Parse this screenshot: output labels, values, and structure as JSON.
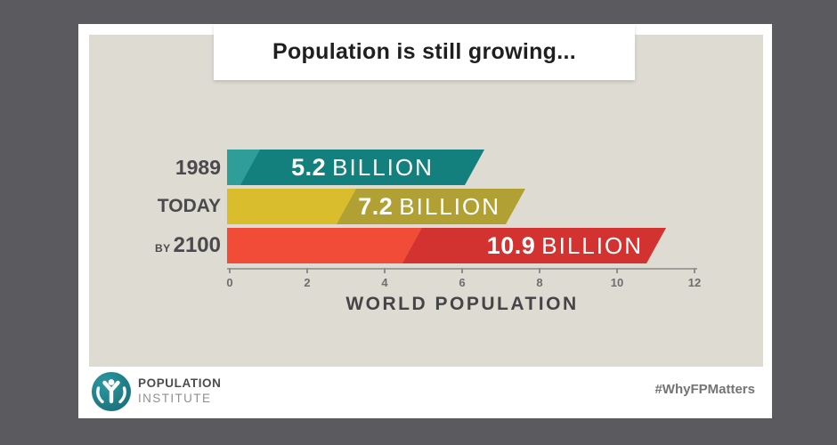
{
  "title": "Population is still growing...",
  "chart_data": {
    "type": "bar",
    "orientation": "horizontal",
    "title": "Population is still growing...",
    "categories": [
      "1989",
      "TODAY",
      "BY 2100"
    ],
    "values": [
      5.2,
      7.2,
      10.9
    ],
    "value_labels": [
      {
        "number": "5.2",
        "unit": "BILLION"
      },
      {
        "number": "7.2",
        "unit": "BILLION"
      },
      {
        "number": "10.9",
        "unit": "BILLION"
      }
    ],
    "xlabel": "WORLD POPULATION",
    "xlim": [
      0,
      12
    ],
    "xticks": [
      "0",
      "2",
      "4",
      "6",
      "8",
      "10",
      "12"
    ],
    "grid": false,
    "legend": false
  },
  "rows": [
    {
      "prefix": "",
      "label": "1989",
      "number": "5.2",
      "unit": "BILLION"
    },
    {
      "prefix": "",
      "label": "TODAY",
      "number": "7.2",
      "unit": "BILLION"
    },
    {
      "prefix": "BY",
      "label": "2100",
      "number": "10.9",
      "unit": "BILLION"
    }
  ],
  "axis": {
    "xlabel": "WORLD POPULATION"
  },
  "footer": {
    "logo_line1": "POPULATION",
    "logo_line2": "INSTITUTE",
    "hashtag": "#WhyFPMatters"
  },
  "colors": {
    "page_bg": "#5b5a5e",
    "card_bg": "#ffffff",
    "panel_bg": "#dedbd3",
    "title_text": "#1f1f1f",
    "row_label_text": "#4a4a4d",
    "value_text": "#ffffff",
    "axis_line": "#a09e99",
    "tick_text": "#6e6e71",
    "xlabel_text": "#454548",
    "hashtag_text": "#747477",
    "logo_teal": "#1e7e88",
    "bars": [
      {
        "light": "#2f9e98",
        "dark": "#13807d"
      },
      {
        "light": "#d9bd2c",
        "dark": "#b1a135"
      },
      {
        "light": "#f04c37",
        "dark": "#d23331"
      }
    ]
  }
}
